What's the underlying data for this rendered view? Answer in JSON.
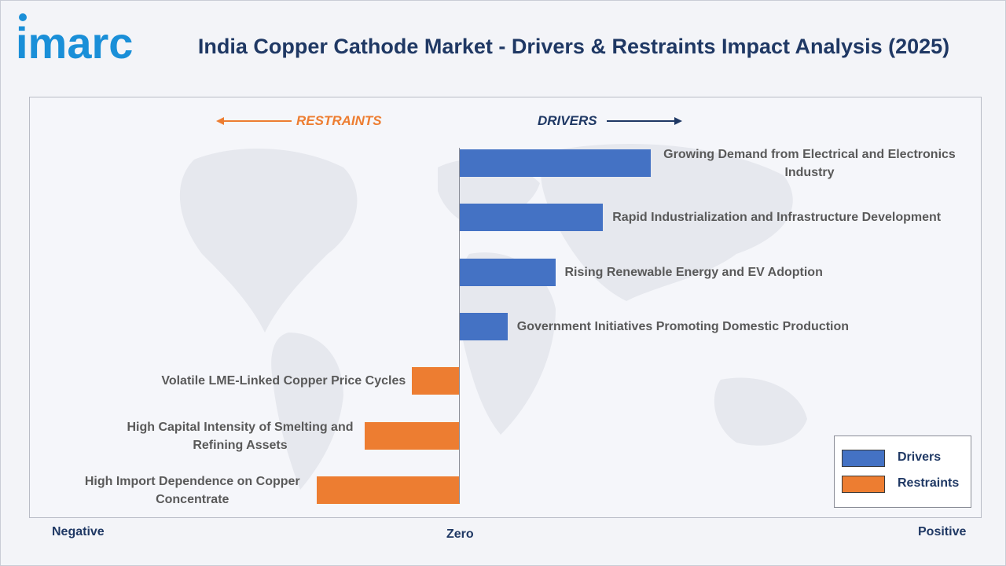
{
  "brand": {
    "logo_text": "imarc",
    "logo_color": "#1a8fd8"
  },
  "title": "India Copper Cathode Market - Drivers & Restraints Impact Analysis (2025)",
  "direction_labels": {
    "restraints": "RESTRAINTS",
    "drivers": "DRIVERS"
  },
  "chart_data": {
    "type": "bar",
    "orientation": "horizontal",
    "x_axis_ticks": {
      "negative": "Negative",
      "zero": "Zero",
      "positive": "Positive"
    },
    "items": [
      {
        "label": "Growing Demand from Electrical and Electronics Industry",
        "value": 4,
        "series": "Drivers"
      },
      {
        "label": "Rapid Industrialization and Infrastructure Development",
        "value": 3,
        "series": "Drivers"
      },
      {
        "label": "Rising Renewable Energy and EV Adoption",
        "value": 2,
        "series": "Drivers"
      },
      {
        "label": "Government Initiatives Promoting Domestic Production",
        "value": 1,
        "series": "Drivers"
      },
      {
        "label": "Volatile LME-Linked Copper Price Cycles",
        "value": -1,
        "series": "Restraints"
      },
      {
        "label": "High Capital Intensity of Smelting and Refining Assets",
        "value": -2,
        "series": "Restraints"
      },
      {
        "label": "High Import Dependence on Copper Concentrate",
        "value": -3,
        "series": "Restraints"
      }
    ],
    "legend": [
      {
        "name": "Drivers",
        "color": "#4472c4"
      },
      {
        "name": "Restraints",
        "color": "#ed7d31"
      }
    ],
    "legend_position": "bottom-right",
    "colors": {
      "drivers": "#4472c4",
      "restraints": "#ed7d31"
    }
  }
}
